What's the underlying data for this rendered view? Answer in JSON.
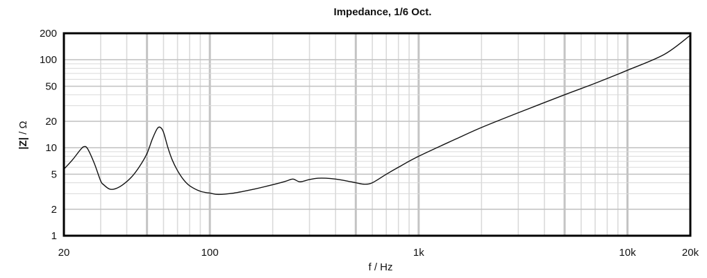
{
  "chart_data": {
    "type": "line",
    "title": "Impedance, 1/6 Oct.",
    "xlabel": "f / Hz",
    "ylabel_bold": "|Z|",
    "ylabel_rest": " / Ω",
    "xscale": "log",
    "yscale": "log",
    "xlim": [
      20,
      20000
    ],
    "ylim": [
      1,
      200
    ],
    "grid": true,
    "x_ticks": [
      {
        "value": 20,
        "label": "20"
      },
      {
        "value": 100,
        "label": "100"
      },
      {
        "value": 1000,
        "label": "1k"
      },
      {
        "value": 10000,
        "label": "10k"
      },
      {
        "value": 20000,
        "label": "20k"
      }
    ],
    "y_ticks": [
      {
        "value": 1,
        "label": "1"
      },
      {
        "value": 2,
        "label": "2"
      },
      {
        "value": 5,
        "label": "5"
      },
      {
        "value": 10,
        "label": "10"
      },
      {
        "value": 20,
        "label": "20"
      },
      {
        "value": 50,
        "label": "50"
      },
      {
        "value": 100,
        "label": "100"
      },
      {
        "value": 200,
        "label": "200"
      }
    ],
    "series": [
      {
        "x": [
          20,
          22,
          24,
          25,
          26,
          28,
          30,
          31,
          33,
          35,
          38,
          42,
          46,
          50,
          53,
          56,
          58,
          60,
          63,
          66,
          70,
          75,
          80,
          90,
          100,
          110,
          130,
          160,
          200,
          230,
          250,
          270,
          300,
          330,
          360,
          400,
          450,
          500,
          550,
          600,
          700,
          800,
          1000,
          1500,
          2000,
          3000,
          5000,
          7000,
          10000,
          15000,
          20000
        ],
        "y": [
          5.7,
          7.3,
          9.5,
          10.3,
          9.7,
          6.6,
          4.2,
          3.8,
          3.4,
          3.4,
          3.75,
          4.6,
          6.1,
          8.6,
          12.5,
          16.5,
          17.0,
          15.0,
          10.0,
          7.3,
          5.5,
          4.3,
          3.7,
          3.2,
          3.05,
          2.95,
          3.05,
          3.35,
          3.8,
          4.15,
          4.4,
          4.1,
          4.35,
          4.5,
          4.5,
          4.4,
          4.2,
          4.0,
          3.85,
          4.0,
          5.0,
          6.0,
          8.0,
          12.5,
          17.0,
          25.0,
          40.0,
          54.0,
          76.0,
          115.0,
          190.0
        ]
      }
    ],
    "colors": {
      "line": "#111111",
      "grid_major": "#c4c4c4",
      "grid_minor": "#dadada",
      "frame": "#000000"
    }
  }
}
